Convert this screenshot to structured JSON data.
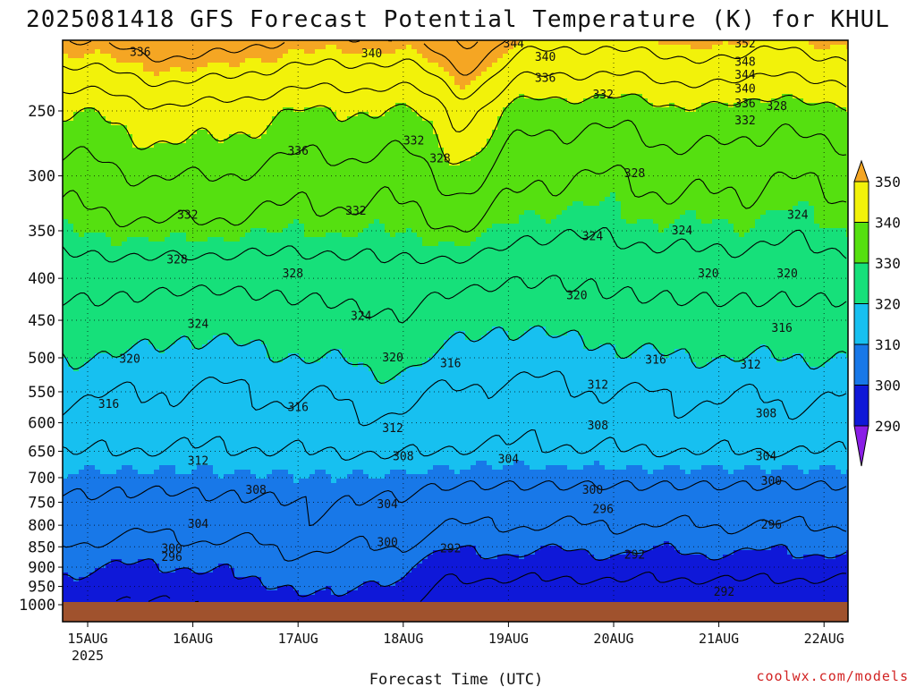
{
  "title": "2025081418 GFS Forecast Potential Temperature (K) for KHUL",
  "credit": "coolwx.com/models",
  "chart_data": {
    "type": "heatmap",
    "title": "2025081418 GFS Forecast Potential Temperature (K) for KHUL",
    "xlabel": "Forecast Time (UTC)",
    "ylabel": "",
    "x_ticks": [
      "15AUG",
      "16AUG",
      "17AUG",
      "18AUG",
      "19AUG",
      "20AUG",
      "21AUG",
      "22AUG"
    ],
    "x_tick_sublabel": "2025",
    "y_ticks": [
      250,
      300,
      350,
      400,
      450,
      500,
      550,
      600,
      650,
      700,
      750,
      800,
      850,
      900,
      950,
      1000
    ],
    "y_inverted": true,
    "grid": "dotted",
    "colorbar": {
      "labels": [
        350,
        340,
        330,
        320,
        310,
        300,
        290
      ],
      "bands": [
        {
          "range": "above 350",
          "color": "#f5a623"
        },
        {
          "range": "340-350",
          "color": "#f2f20a"
        },
        {
          "range": "330-340",
          "color": "#55e010"
        },
        {
          "range": "320-330",
          "color": "#16e07a"
        },
        {
          "range": "310-320",
          "color": "#17c0f0"
        },
        {
          "range": "300-310",
          "color": "#1878e8"
        },
        {
          "range": "290-300",
          "color": "#0f18d8"
        },
        {
          "range": "below 290",
          "color": "#8a1ee6"
        }
      ]
    },
    "contour_interval": 4,
    "contour_labels": [
      {
        "value": 336,
        "day": 0.5,
        "p": 212
      },
      {
        "value": 340,
        "day": 2.7,
        "p": 213
      },
      {
        "value": 344,
        "day": 4.05,
        "p": 207
      },
      {
        "value": 340,
        "day": 4.35,
        "p": 215
      },
      {
        "value": 336,
        "day": 4.35,
        "p": 228
      },
      {
        "value": 332,
        "day": 4.9,
        "p": 239
      },
      {
        "value": 352,
        "day": 6.25,
        "p": 207
      },
      {
        "value": 348,
        "day": 6.25,
        "p": 218
      },
      {
        "value": 344,
        "day": 6.25,
        "p": 226
      },
      {
        "value": 340,
        "day": 6.25,
        "p": 235
      },
      {
        "value": 336,
        "day": 6.25,
        "p": 245
      },
      {
        "value": 332,
        "day": 6.25,
        "p": 257
      },
      {
        "value": 328,
        "day": 6.55,
        "p": 247
      },
      {
        "value": 336,
        "day": 2.0,
        "p": 280
      },
      {
        "value": 332,
        "day": 3.1,
        "p": 272
      },
      {
        "value": 328,
        "day": 3.35,
        "p": 286
      },
      {
        "value": 328,
        "day": 5.2,
        "p": 298
      },
      {
        "value": 332,
        "day": 0.95,
        "p": 335
      },
      {
        "value": 332,
        "day": 2.55,
        "p": 331
      },
      {
        "value": 324,
        "day": 4.8,
        "p": 356
      },
      {
        "value": 324,
        "day": 5.65,
        "p": 350
      },
      {
        "value": 324,
        "day": 6.75,
        "p": 335
      },
      {
        "value": 328,
        "day": 0.85,
        "p": 380
      },
      {
        "value": 328,
        "day": 1.95,
        "p": 395
      },
      {
        "value": 320,
        "day": 4.65,
        "p": 420
      },
      {
        "value": 320,
        "day": 5.9,
        "p": 395
      },
      {
        "value": 320,
        "day": 6.65,
        "p": 395
      },
      {
        "value": 324,
        "day": 1.05,
        "p": 455
      },
      {
        "value": 324,
        "day": 2.6,
        "p": 445
      },
      {
        "value": 316,
        "day": 6.6,
        "p": 460
      },
      {
        "value": 320,
        "day": 0.4,
        "p": 502
      },
      {
        "value": 320,
        "day": 2.9,
        "p": 500
      },
      {
        "value": 316,
        "day": 3.45,
        "p": 508
      },
      {
        "value": 316,
        "day": 5.4,
        "p": 503
      },
      {
        "value": 312,
        "day": 6.3,
        "p": 510
      },
      {
        "value": 312,
        "day": 4.85,
        "p": 540
      },
      {
        "value": 316,
        "day": 0.2,
        "p": 570
      },
      {
        "value": 316,
        "day": 2.0,
        "p": 575
      },
      {
        "value": 312,
        "day": 2.9,
        "p": 610
      },
      {
        "value": 308,
        "day": 4.85,
        "p": 605
      },
      {
        "value": 308,
        "day": 6.45,
        "p": 585
      },
      {
        "value": 312,
        "day": 1.05,
        "p": 668
      },
      {
        "value": 308,
        "day": 3.0,
        "p": 660
      },
      {
        "value": 304,
        "day": 4.0,
        "p": 665
      },
      {
        "value": 304,
        "day": 6.45,
        "p": 660
      },
      {
        "value": 308,
        "day": 1.6,
        "p": 725
      },
      {
        "value": 304,
        "day": 2.85,
        "p": 755
      },
      {
        "value": 300,
        "day": 4.8,
        "p": 725
      },
      {
        "value": 300,
        "day": 6.5,
        "p": 707
      },
      {
        "value": 296,
        "day": 4.9,
        "p": 765
      },
      {
        "value": 296,
        "day": 6.5,
        "p": 800
      },
      {
        "value": 304,
        "day": 1.05,
        "p": 798
      },
      {
        "value": 300,
        "day": 0.8,
        "p": 855
      },
      {
        "value": 296,
        "day": 0.8,
        "p": 875
      },
      {
        "value": 300,
        "day": 2.85,
        "p": 840
      },
      {
        "value": 292,
        "day": 3.45,
        "p": 855
      },
      {
        "value": 292,
        "day": 5.2,
        "p": 870
      },
      {
        "value": 292,
        "day": 6.05,
        "p": 965
      }
    ]
  }
}
